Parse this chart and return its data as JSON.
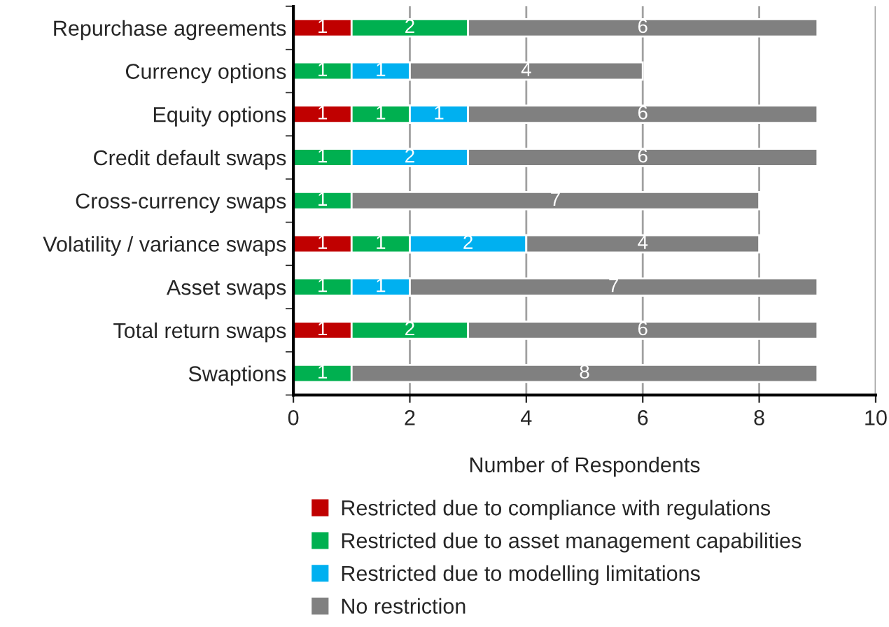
{
  "chart_data": {
    "type": "bar",
    "orientation": "horizontal",
    "stacked": true,
    "data_labels": true,
    "grid": "x",
    "legend": "bottom",
    "xlabel": "Number of Respondents",
    "categories": [
      "Repurchase agreements",
      "Currency options",
      "Equity options",
      "Credit default swaps",
      "Cross-currency swaps",
      "Volatility / variance swaps",
      "Asset swaps",
      "Total return swaps",
      "Swaptions"
    ],
    "xlim": [
      0,
      10
    ],
    "xticks": [
      0,
      2,
      4,
      6,
      8,
      10
    ],
    "series": [
      {
        "name": "Restricted due to compliance with regulations",
        "color": "#c00000",
        "values": [
          1,
          null,
          1,
          null,
          null,
          1,
          null,
          1,
          null
        ]
      },
      {
        "name": "Restricted due to asset management capabilities",
        "color": "#00b050",
        "values": [
          2,
          1,
          1,
          1,
          1,
          1,
          1,
          2,
          1
        ]
      },
      {
        "name": "Restricted due to modelling limitations",
        "color": "#00b0f0",
        "values": [
          null,
          1,
          1,
          2,
          null,
          2,
          1,
          null,
          null
        ]
      },
      {
        "name": "No restriction",
        "color": "#808080",
        "values": [
          6,
          4,
          6,
          6,
          7,
          4,
          7,
          6,
          8
        ]
      }
    ]
  }
}
